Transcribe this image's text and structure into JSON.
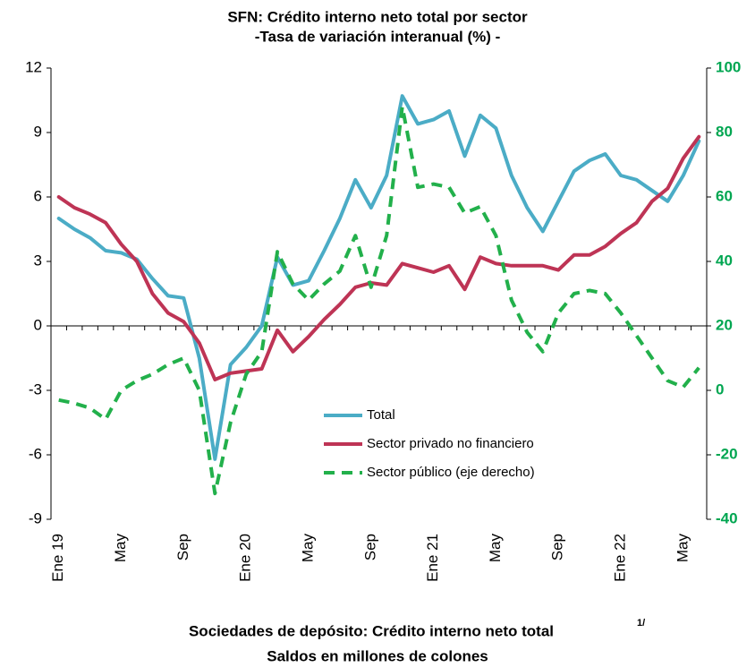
{
  "chart_data": {
    "type": "line",
    "title": "SFN:  Crédito interno neto total por sector",
    "subtitle": "-Tasa de variación interanual (%) -",
    "categories": [
      "Ene 19",
      null,
      null,
      null,
      "May",
      null,
      null,
      null,
      "Sep",
      null,
      null,
      null,
      "Ene 20",
      null,
      null,
      null,
      "May",
      null,
      null,
      null,
      "Sep",
      null,
      null,
      null,
      "Ene 21",
      null,
      null,
      null,
      "May",
      null,
      null,
      null,
      "Sep",
      null,
      null,
      null,
      "Ene 22",
      null,
      null,
      null,
      "May",
      null
    ],
    "ylim": [
      -9,
      12
    ],
    "yticks": [
      -9,
      -6,
      -3,
      0,
      3,
      6,
      9,
      12
    ],
    "y2lim": [
      -40,
      100
    ],
    "y2ticks": [
      -40,
      -20,
      0,
      20,
      40,
      60,
      80,
      100
    ],
    "series": [
      {
        "name": "Total",
        "color": "#4bacc6",
        "values": [
          5.0,
          4.5,
          4.1,
          3.5,
          3.4,
          3.1,
          2.2,
          1.4,
          1.3,
          -1.5,
          -6.2,
          -1.8,
          -1.0,
          0.0,
          3.2,
          1.9,
          2.1,
          3.5,
          5.0,
          6.8,
          5.5,
          7.0,
          10.7,
          9.4,
          9.6,
          10.0,
          7.9,
          9.8,
          9.2,
          7.0,
          5.5,
          4.4,
          5.8,
          7.2,
          7.7,
          8.0,
          7.0,
          6.8,
          6.3,
          5.8,
          7.0,
          8.6
        ]
      },
      {
        "name": "Sector privado no financiero",
        "color": "#be3455",
        "values": [
          6.0,
          5.5,
          5.2,
          4.8,
          3.8,
          3.0,
          1.5,
          0.6,
          0.2,
          -0.8,
          -2.5,
          -2.2,
          -2.1,
          -2.0,
          -0.2,
          -1.2,
          -0.5,
          0.3,
          1.0,
          1.8,
          2.0,
          1.9,
          2.9,
          2.7,
          2.5,
          2.8,
          1.7,
          3.2,
          2.9,
          2.8,
          2.8,
          2.8,
          2.6,
          3.3,
          3.3,
          3.7,
          4.3,
          4.8,
          5.8,
          6.4,
          7.8,
          8.8
        ]
      },
      {
        "name": "Sector público (eje derecho)",
        "color": "#22b04b",
        "axis": "y2",
        "dashed": true,
        "values": [
          -3,
          -4,
          -5.5,
          -9,
          0,
          3,
          5,
          8,
          10,
          0,
          -32,
          -10,
          5,
          12,
          43,
          33,
          28,
          33,
          37,
          48,
          32,
          48,
          88,
          63,
          64,
          63,
          55,
          57,
          48,
          28,
          18,
          12,
          24,
          30,
          31,
          30,
          24,
          17,
          10,
          3,
          1,
          7
        ]
      }
    ],
    "caption": {
      "title": "Sociedades de depósito: Crédito interno neto total",
      "marker": "1/",
      "subtitle": "Saldos en millones de colones"
    }
  }
}
